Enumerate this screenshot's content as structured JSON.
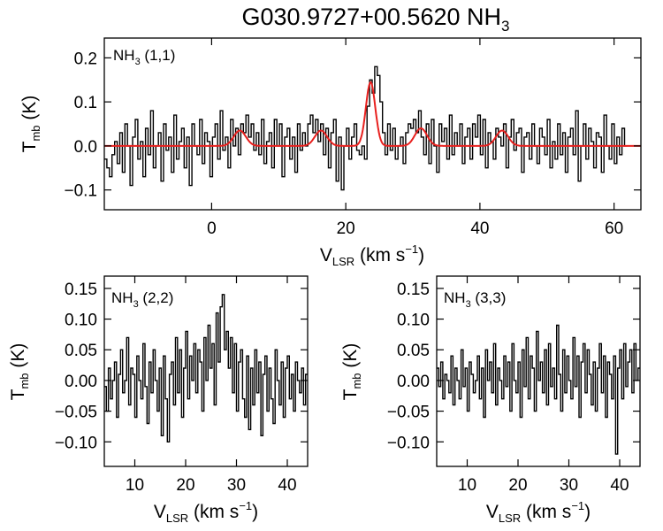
{
  "figure_title": {
    "main": "G030.9727+00.5620 NH",
    "sub": "3"
  },
  "colors": {
    "spectrum": "#000000",
    "fit": "#e8201e",
    "axes": "#000000"
  },
  "chart_data": [
    {
      "type": "line",
      "panel": "top",
      "label": {
        "main": "NH",
        "sub": "3",
        "rest": " (1,1)"
      },
      "xlabel": {
        "main": "V",
        "sub": "LSR",
        "rest": " (km s",
        "sup": "−1",
        "close": ")"
      },
      "ylabel": {
        "main": "T",
        "sub": "mb",
        "rest": " (K)"
      },
      "xlim": [
        -16,
        64
      ],
      "ylim": [
        -0.145,
        0.245
      ],
      "xticks": [
        0,
        20,
        40,
        60
      ],
      "xtick_labels": [
        "0",
        "20",
        "40",
        "60"
      ],
      "yticks": [
        -0.1,
        0.0,
        0.1,
        0.2
      ],
      "ytick_labels": [
        "−0.1",
        "0.0",
        "0.1",
        "0.2"
      ],
      "series": [
        {
          "name": "spectrum",
          "style": "histogram",
          "x0": -16,
          "dx": 0.384,
          "values": [
            -0.03,
            -0.05,
            -0.07,
            -0.02,
            0.01,
            -0.04,
            0.03,
            -0.06,
            0.05,
            0.0,
            -0.09,
            0.02,
            0.06,
            -0.03,
            0.01,
            -0.07,
            0.04,
            -0.02,
            0.08,
            -0.05,
            0.0,
            0.03,
            -0.08,
            0.05,
            -0.01,
            0.02,
            -0.06,
            0.07,
            -0.03,
            0.01,
            0.04,
            -0.05,
            0.02,
            -0.09,
            0.05,
            0.0,
            -0.02,
            0.06,
            -0.04,
            0.03,
            0.01,
            -0.07,
            0.02,
            0.05,
            -0.03,
            0.08,
            -0.01,
            0.02,
            -0.05,
            0.06,
            0.0,
            0.04,
            -0.02,
            0.05,
            0.03,
            0.07,
            0.02,
            0.05,
            -0.01,
            0.03,
            -0.02,
            0.06,
            -0.04,
            0.01,
            0.03,
            -0.05,
            0.06,
            0.0,
            0.05,
            -0.07,
            0.02,
            0.04,
            -0.03,
            0.02,
            -0.06,
            0.05,
            -0.01,
            0.03,
            0.0,
            0.05,
            0.07,
            0.03,
            0.06,
            0.01,
            0.05,
            -0.02,
            0.04,
            -0.05,
            0.03,
            0.06,
            -0.08,
            0.02,
            -0.1,
            0.0,
            0.04,
            -0.03,
            0.02,
            0.05,
            -0.01,
            -0.02,
            0.0,
            -0.03,
            0.09,
            0.15,
            0.12,
            0.18,
            0.16,
            0.1,
            0.03,
            -0.02,
            0.05,
            -0.01,
            0.04,
            -0.03,
            0.0,
            0.02,
            -0.04,
            0.03,
            0.05,
            0.04,
            0.06,
            0.03,
            0.08,
            0.02,
            -0.02,
            0.05,
            -0.04,
            0.06,
            0.0,
            -0.06,
            0.05,
            0.01,
            0.04,
            -0.03,
            0.07,
            -0.02,
            0.03,
            0.0,
            0.05,
            -0.04,
            0.02,
            0.04,
            -0.03,
            0.05,
            0.02,
            0.07,
            -0.02,
            0.06,
            -0.05,
            0.03,
            0.01,
            -0.03,
            0.04,
            0.02,
            0.0,
            0.05,
            -0.05,
            0.02,
            0.06,
            -0.01,
            0.03,
            0.04,
            -0.06,
            0.02,
            0.03,
            -0.03,
            0.05,
            0.0,
            -0.04,
            0.04,
            0.02,
            -0.02,
            0.06,
            -0.05,
            0.01,
            -0.03,
            0.05,
            -0.02,
            0.03,
            -0.06,
            0.02,
            0.04,
            -0.02,
            0.08,
            -0.08,
            0.0,
            0.05,
            -0.03,
            0.04,
            0.01,
            -0.05,
            0.03,
            0.02,
            -0.06,
            0.07,
            0.0,
            -0.03,
            0.05,
            -0.04,
            0.02,
            -0.02,
            0.04,
            0.0
          ]
        },
        {
          "name": "hyperfine fit",
          "style": "gaussians",
          "baseline": 0.0,
          "components": [
            {
              "center": 4.2,
              "amp": 0.035,
              "sigma": 0.9
            },
            {
              "center": 16.3,
              "amp": 0.035,
              "sigma": 0.9
            },
            {
              "center": 23.7,
              "amp": 0.145,
              "sigma": 0.7
            },
            {
              "center": 31.2,
              "amp": 0.04,
              "sigma": 0.9
            },
            {
              "center": 43.3,
              "amp": 0.035,
              "sigma": 0.9
            }
          ]
        }
      ]
    },
    {
      "type": "line",
      "panel": "bottom-left",
      "label": {
        "main": "NH",
        "sub": "3",
        "rest": " (2,2)"
      },
      "xlabel": {
        "main": "V",
        "sub": "LSR",
        "rest": " (km s",
        "sup": "−1",
        "close": ")"
      },
      "ylabel": {
        "main": "T",
        "sub": "mb",
        "rest": " (K)"
      },
      "xlim": [
        4,
        44
      ],
      "ylim": [
        -0.14,
        0.17
      ],
      "xticks": [
        10,
        20,
        30,
        40
      ],
      "xtick_labels": [
        "10",
        "20",
        "30",
        "40"
      ],
      "yticks": [
        -0.1,
        -0.05,
        0.0,
        0.05,
        0.1,
        0.15
      ],
      "ytick_labels": [
        "−0.10",
        "−0.05",
        "0.00",
        "0.05",
        "0.10",
        "0.15"
      ],
      "series": [
        {
          "name": "spectrum",
          "style": "histogram",
          "x0": 4,
          "dx": 0.4,
          "values": [
            -0.01,
            -0.05,
            0.02,
            -0.03,
            0.0,
            0.03,
            -0.06,
            0.01,
            0.05,
            -0.02,
            0.0,
            0.07,
            -0.04,
            0.02,
            0.01,
            -0.06,
            0.04,
            0.0,
            -0.03,
            0.06,
            -0.01,
            -0.07,
            0.03,
            -0.02,
            0.05,
            0.0,
            -0.05,
            0.02,
            -0.09,
            0.04,
            -0.03,
            -0.1,
            0.01,
            0.03,
            -0.04,
            0.07,
            -0.02,
            0.05,
            -0.06,
            0.02,
            0.08,
            -0.03,
            0.04,
            0.0,
            0.06,
            -0.02,
            0.05,
            0.03,
            -0.05,
            0.07,
            0.0,
            0.09,
            0.02,
            0.06,
            -0.04,
            0.11,
            0.03,
            0.12,
            0.14,
            0.05,
            0.08,
            0.02,
            0.07,
            -0.02,
            0.06,
            -0.05,
            0.03,
            0.05,
            -0.03,
            -0.06,
            0.04,
            -0.08,
            0.02,
            -0.04,
            0.05,
            -0.02,
            0.03,
            -0.09,
            0.01,
            0.04,
            -0.05,
            0.02,
            -0.03,
            -0.07,
            0.05,
            0.0,
            -0.04,
            0.03,
            -0.06,
            0.02,
            0.04,
            -0.03,
            0.01,
            -0.05,
            0.03,
            0.0,
            -0.02,
            0.02,
            -0.04,
            0.01
          ]
        }
      ]
    },
    {
      "type": "line",
      "panel": "bottom-right",
      "label": {
        "main": "NH",
        "sub": "3",
        "rest": " (3,3)"
      },
      "xlabel": {
        "main": "V",
        "sub": "LSR",
        "rest": " (km s",
        "sup": "−1",
        "close": ")"
      },
      "ylabel": {
        "main": "T",
        "sub": "mb",
        "rest": " (K)"
      },
      "xlim": [
        4,
        44
      ],
      "ylim": [
        -0.14,
        0.17
      ],
      "xticks": [
        10,
        20,
        30,
        40
      ],
      "xtick_labels": [
        "10",
        "20",
        "30",
        "40"
      ],
      "yticks": [
        -0.1,
        -0.05,
        0.0,
        0.05,
        0.1,
        0.15
      ],
      "ytick_labels": [
        "−0.10",
        "−0.05",
        "0.00",
        "0.05",
        "0.10",
        "0.15"
      ],
      "series": [
        {
          "name": "spectrum",
          "style": "histogram",
          "x0": 4,
          "dx": 0.4,
          "values": [
            0.02,
            -0.01,
            0.03,
            -0.03,
            0.01,
            0.0,
            -0.02,
            0.04,
            -0.04,
            0.02,
            0.0,
            -0.03,
            0.05,
            -0.01,
            0.02,
            -0.05,
            0.03,
            0.01,
            -0.02,
            0.0,
            0.04,
            -0.03,
            0.02,
            -0.06,
            0.05,
            0.0,
            0.03,
            -0.02,
            0.06,
            -0.04,
            0.02,
            0.0,
            -0.03,
            0.04,
            -0.01,
            0.03,
            -0.05,
            0.06,
            0.0,
            -0.02,
            0.03,
            -0.06,
            0.05,
            -0.01,
            0.07,
            -0.03,
            0.04,
            0.02,
            -0.05,
            0.08,
            0.0,
            0.03,
            -0.02,
            0.05,
            -0.04,
            0.06,
            -0.01,
            0.02,
            -0.03,
            0.09,
            0.01,
            -0.05,
            0.05,
            -0.02,
            0.04,
            0.0,
            -0.03,
            0.07,
            -0.01,
            0.04,
            -0.06,
            0.03,
            0.06,
            -0.02,
            0.05,
            0.01,
            -0.04,
            0.03,
            -0.05,
            0.02,
            0.06,
            -0.02,
            0.04,
            -0.06,
            0.03,
            0.01,
            -0.03,
            0.04,
            -0.12,
            0.02,
            0.05,
            -0.03,
            0.06,
            -0.01,
            0.03,
            0.05,
            -0.02,
            0.06,
            0.0,
            0.02
          ]
        }
      ]
    }
  ]
}
